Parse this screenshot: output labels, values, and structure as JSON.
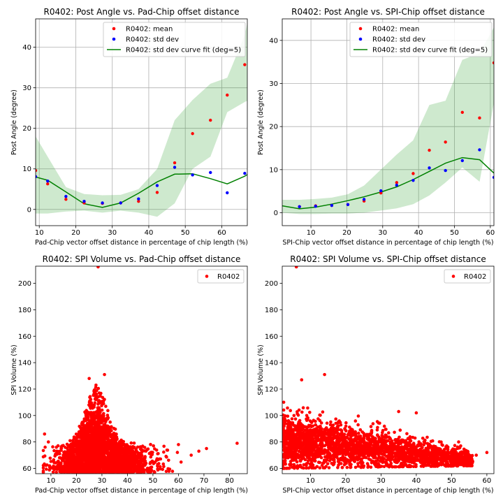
{
  "figure": {
    "background": "#ffffff",
    "grid_color": "#b0b0b0"
  },
  "chart_data": [
    {
      "type": "line",
      "title": "R0402: Post Angle vs. Pad-Chip offset distance",
      "xlabel": "Pad-Chip vector offset distance in percentage of chip length (%)",
      "ylabel": "Post Angle (degree)",
      "xlim": [
        9,
        67
      ],
      "ylim": [
        -4,
        47
      ],
      "xticks": [
        10,
        20,
        30,
        40,
        50,
        60
      ],
      "yticks": [
        0,
        10,
        20,
        30,
        40
      ],
      "grid": true,
      "legend_position": "upper-center",
      "band": {
        "color": "#2ca02c",
        "alpha": 0.23,
        "x": [
          9,
          12.3,
          17.3,
          22.3,
          27.3,
          32.3,
          37.2,
          42.3,
          47.1,
          52,
          56.9,
          61.5,
          66.3,
          67
        ],
        "upper": [
          18,
          13,
          5.5,
          3.8,
          3.5,
          3.6,
          5,
          10,
          22,
          27,
          31,
          32.5,
          43,
          46
        ],
        "lower": [
          -1,
          -1,
          -0.5,
          -0.3,
          -0.8,
          -0.3,
          -0.8,
          -1.8,
          1.5,
          10,
          13,
          24,
          26.5,
          26.8
        ]
      },
      "series": [
        {
          "name": "R0402: mean",
          "kind": "scatter",
          "color": "#ff0000",
          "x": [
            9,
            12.3,
            17.3,
            22.3,
            27.3,
            32.3,
            37.2,
            42.3,
            47.1,
            52,
            56.9,
            61.5,
            66.3
          ],
          "y": [
            9.6,
            6.3,
            2.5,
            1.6,
            1.5,
            1.6,
            2,
            4.2,
            11.5,
            18.7,
            22,
            28.2,
            35.7
          ]
        },
        {
          "name": "R0402: std dev",
          "kind": "scatter",
          "color": "#0000ff",
          "x": [
            9,
            12.3,
            17.3,
            22.3,
            27.3,
            32.3,
            37.2,
            42.3,
            47.1,
            52,
            56.9,
            61.5,
            66.3
          ],
          "y": [
            8.1,
            7,
            3.2,
            2,
            1.6,
            1.6,
            2.6,
            5.9,
            10.4,
            8.5,
            9.1,
            4.1,
            8.9
          ]
        },
        {
          "name": "R0402: std dev curve fit (deg=5)",
          "kind": "line",
          "color": "#008000",
          "x": [
            9,
            12.3,
            17.3,
            22.3,
            27.3,
            32.3,
            37.2,
            42.3,
            47.1,
            52,
            56.9,
            61.5,
            66.3,
            67
          ],
          "y": [
            8,
            7.2,
            4.3,
            1.4,
            0.5,
            1.6,
            4,
            6.8,
            8.7,
            8.8,
            7.6,
            6.3,
            8.2,
            8.6
          ]
        }
      ]
    },
    {
      "type": "line",
      "title": "R0402: Post Angle vs. SPI-Chip offset distance",
      "xlabel": "SPI-Chip vector offset distance in percentage of chip length (%)",
      "ylabel": "Post Angle (degree)",
      "xlim": [
        2,
        61
      ],
      "ylim": [
        -3,
        45
      ],
      "xticks": [
        10,
        20,
        30,
        40,
        50,
        60
      ],
      "yticks": [
        0,
        10,
        20,
        30,
        40
      ],
      "grid": true,
      "legend_position": "upper-center",
      "band": {
        "color": "#2ca02c",
        "alpha": 0.23,
        "x": [
          2,
          6.8,
          11.3,
          15.8,
          20.3,
          24.8,
          29.5,
          33.9,
          38.5,
          43,
          47.5,
          52.2,
          57,
          61
        ],
        "upper": [
          3,
          3,
          3.2,
          3.5,
          4.3,
          6.3,
          10,
          13.5,
          16.8,
          25,
          26,
          35.5,
          37,
          43
        ],
        "lower": [
          0,
          -0.3,
          -0.3,
          -0.2,
          -0.2,
          0,
          0.5,
          1,
          2,
          4,
          7,
          10.5,
          7.2,
          25.5
        ]
      },
      "series": [
        {
          "name": "R0402: mean",
          "kind": "scatter",
          "color": "#ff0000",
          "x": [
            6.8,
            11.3,
            15.8,
            20.3,
            24.8,
            29.5,
            33.9,
            38.5,
            43,
            47.5,
            52.2,
            57,
            61
          ],
          "y": [
            1.4,
            1.6,
            1.7,
            1.9,
            2.7,
            4.6,
            7,
            9.1,
            14.5,
            16.4,
            23.3,
            22,
            34.8
          ]
        },
        {
          "name": "R0402: std dev",
          "kind": "scatter",
          "color": "#0000ff",
          "x": [
            6.8,
            11.3,
            15.8,
            20.3,
            24.8,
            29.5,
            33.9,
            38.5,
            43,
            47.5,
            52.2,
            57,
            61
          ],
          "y": [
            1.4,
            1.5,
            1.7,
            1.9,
            3.1,
            5.1,
            6.4,
            7.5,
            10.4,
            9.8,
            12.1,
            14.6,
            8.2
          ]
        },
        {
          "name": "R0402: std dev curve fit (deg=5)",
          "kind": "line",
          "color": "#008000",
          "x": [
            2,
            6.8,
            11.3,
            15.8,
            20.3,
            24.8,
            29.5,
            33.9,
            38.5,
            43,
            47.5,
            52.2,
            57,
            61
          ],
          "y": [
            1.6,
            0.9,
            1.3,
            2,
            2.8,
            3.7,
            4.8,
            6,
            7.7,
            9.6,
            11.5,
            12.8,
            12.3,
            9.2
          ]
        }
      ]
    },
    {
      "type": "scatter",
      "title": "R0402: SPI Volume vs. Pad-Chip offset distance",
      "xlabel": "Pad-Chip vector offset distance in percentage of chip length (%)",
      "ylabel": "SPI Volume (%)",
      "xlim": [
        4,
        87
      ],
      "ylim": [
        56,
        213
      ],
      "xticks": [
        10,
        20,
        30,
        40,
        50,
        60,
        70,
        80
      ],
      "yticks": [
        60,
        80,
        100,
        120,
        140,
        160,
        180,
        200
      ],
      "grid": false,
      "legend_position": "upper-right",
      "series": [
        {
          "name": "R0402",
          "color": "#ff0000",
          "cloud": {
            "x_center": 28,
            "x_left_spread": 7,
            "x_right_spread": 10,
            "x_min": 7,
            "x_max": 72,
            "y_base": 72,
            "y_peak": 118,
            "y_floor": 57,
            "count": 2600
          },
          "x": [
            28.5,
            31,
            25,
            83,
            7.5,
            9,
            65,
            68,
            71,
            60
          ],
          "y": [
            212.5,
            131,
            128,
            79,
            86,
            80,
            70,
            73,
            75,
            78
          ]
        }
      ]
    },
    {
      "type": "scatter",
      "title": "R0402: SPI Volume vs. SPI-Chip offset distance",
      "xlabel": "SPI-Chip vector offset distance in percentage of chip length (%)",
      "ylabel": "SPI Volume (%)",
      "xlim": [
        2,
        62
      ],
      "ylim": [
        56,
        213
      ],
      "xticks": [
        10,
        20,
        30,
        40,
        50,
        60
      ],
      "yticks": [
        60,
        80,
        100,
        120,
        140,
        160,
        180,
        200
      ],
      "grid": false,
      "legend_position": "upper-right",
      "series": [
        {
          "name": "R0402",
          "color": "#ff0000",
          "cloud": {
            "x_min": 2,
            "x_max": 56,
            "y_top_at_min": 112,
            "y_top_at_max": 78,
            "y_bottom_at_min": 60,
            "y_bottom_at_max": 62,
            "count": 2600
          },
          "x": [
            6,
            14,
            7.5,
            40,
            35,
            57,
            60,
            52
          ],
          "y": [
            212.5,
            131,
            127,
            102,
            103,
            70,
            72,
            80
          ]
        }
      ]
    }
  ]
}
